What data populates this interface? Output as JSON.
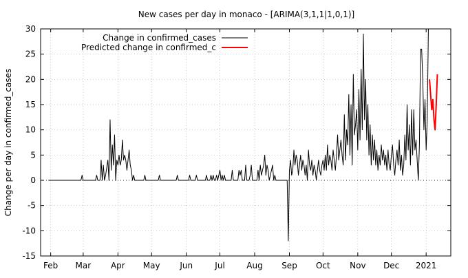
{
  "chart_data": {
    "type": "line",
    "title": "New cases per day in monaco -  [ARIMA(3,1,1|1,0,1)]",
    "xlabel": "",
    "ylabel": "Change per day in confirmed_cases",
    "ylim": [
      -15,
      30
    ],
    "xlim": [
      "2020-01-23",
      "2021-01-23"
    ],
    "y_ticks": [
      -15,
      -10,
      -5,
      0,
      5,
      10,
      15,
      20,
      25,
      30
    ],
    "y_tick_labels": [
      "-15",
      "-10",
      "-5",
      "0",
      "5",
      "10",
      "15",
      "20",
      "25",
      "30"
    ],
    "x_ticks": [
      {
        "label": "Feb",
        "date": "2020-02-01"
      },
      {
        "label": "Mar",
        "date": "2020-03-01"
      },
      {
        "label": "Apr",
        "date": "2020-04-01"
      },
      {
        "label": "May",
        "date": "2020-05-01"
      },
      {
        "label": "Jun",
        "date": "2020-06-01"
      },
      {
        "label": "Jul",
        "date": "2020-07-01"
      },
      {
        "label": "Aug",
        "date": "2020-08-01"
      },
      {
        "label": "Sep",
        "date": "2020-09-01"
      },
      {
        "label": "Oct",
        "date": "2020-10-01"
      },
      {
        "label": "Nov",
        "date": "2020-11-01"
      },
      {
        "label": "Dec",
        "date": "2020-12-01"
      },
      {
        "label": "2021",
        "date": "2021-01-01"
      }
    ],
    "grid": true,
    "zero_line": "dotted",
    "legend_position": "top-left",
    "series": [
      {
        "name": "Change in confirmed_cases",
        "color": "#000000",
        "points": [
          [
            "2020-01-30",
            0
          ],
          [
            "2020-02-28",
            0
          ],
          [
            "2020-02-29",
            1
          ],
          [
            "2020-03-01",
            0
          ],
          [
            "2020-03-12",
            0
          ],
          [
            "2020-03-13",
            1
          ],
          [
            "2020-03-14",
            0
          ],
          [
            "2020-03-16",
            0
          ],
          [
            "2020-03-17",
            4
          ],
          [
            "2020-03-18",
            0
          ],
          [
            "2020-03-19",
            3
          ],
          [
            "2020-03-20",
            0
          ],
          [
            "2020-03-21",
            1
          ],
          [
            "2020-03-23",
            4
          ],
          [
            "2020-03-24",
            0
          ],
          [
            "2020-03-25",
            12
          ],
          [
            "2020-03-26",
            2
          ],
          [
            "2020-03-27",
            7
          ],
          [
            "2020-03-28",
            3
          ],
          [
            "2020-03-29",
            9
          ],
          [
            "2020-03-30",
            0
          ],
          [
            "2020-03-31",
            4
          ],
          [
            "2020-04-01",
            3
          ],
          [
            "2020-04-02",
            5
          ],
          [
            "2020-04-03",
            3
          ],
          [
            "2020-04-04",
            4
          ],
          [
            "2020-04-05",
            8
          ],
          [
            "2020-04-06",
            4
          ],
          [
            "2020-04-07",
            5
          ],
          [
            "2020-04-08",
            4
          ],
          [
            "2020-04-09",
            2
          ],
          [
            "2020-04-10",
            4
          ],
          [
            "2020-04-11",
            6
          ],
          [
            "2020-04-12",
            3
          ],
          [
            "2020-04-13",
            2
          ],
          [
            "2020-04-14",
            0
          ],
          [
            "2020-04-15",
            1
          ],
          [
            "2020-04-16",
            0
          ],
          [
            "2020-04-24",
            0
          ],
          [
            "2020-04-25",
            1
          ],
          [
            "2020-04-26",
            0
          ],
          [
            "2020-05-07",
            0
          ],
          [
            "2020-05-08",
            1
          ],
          [
            "2020-05-09",
            0
          ],
          [
            "2020-05-23",
            0
          ],
          [
            "2020-05-24",
            1
          ],
          [
            "2020-05-25",
            0
          ],
          [
            "2020-06-03",
            0
          ],
          [
            "2020-06-04",
            1
          ],
          [
            "2020-06-05",
            0
          ],
          [
            "2020-06-09",
            0
          ],
          [
            "2020-06-10",
            1
          ],
          [
            "2020-06-11",
            0
          ],
          [
            "2020-06-18",
            0
          ],
          [
            "2020-06-19",
            1
          ],
          [
            "2020-06-20",
            0
          ],
          [
            "2020-06-22",
            0
          ],
          [
            "2020-06-23",
            1
          ],
          [
            "2020-06-24",
            0
          ],
          [
            "2020-06-25",
            1
          ],
          [
            "2020-06-26",
            0
          ],
          [
            "2020-06-27",
            0
          ],
          [
            "2020-06-28",
            1
          ],
          [
            "2020-06-29",
            0
          ],
          [
            "2020-06-30",
            1
          ],
          [
            "2020-07-01",
            2
          ],
          [
            "2020-07-02",
            0
          ],
          [
            "2020-07-03",
            1
          ],
          [
            "2020-07-04",
            0
          ],
          [
            "2020-07-05",
            1
          ],
          [
            "2020-07-06",
            0
          ],
          [
            "2020-07-11",
            0
          ],
          [
            "2020-07-12",
            2
          ],
          [
            "2020-07-13",
            0
          ],
          [
            "2020-07-17",
            0
          ],
          [
            "2020-07-18",
            2
          ],
          [
            "2020-07-19",
            1
          ],
          [
            "2020-07-20",
            2
          ],
          [
            "2020-07-21",
            0
          ],
          [
            "2020-07-23",
            0
          ],
          [
            "2020-07-24",
            3
          ],
          [
            "2020-07-25",
            0
          ],
          [
            "2020-07-27",
            0
          ],
          [
            "2020-07-28",
            1
          ],
          [
            "2020-07-29",
            3
          ],
          [
            "2020-07-30",
            0
          ],
          [
            "2020-08-03",
            0
          ],
          [
            "2020-08-04",
            2
          ],
          [
            "2020-08-05",
            0
          ],
          [
            "2020-08-06",
            3
          ],
          [
            "2020-08-07",
            1
          ],
          [
            "2020-08-08",
            2
          ],
          [
            "2020-08-09",
            3
          ],
          [
            "2020-08-10",
            5
          ],
          [
            "2020-08-11",
            1
          ],
          [
            "2020-08-12",
            3
          ],
          [
            "2020-08-13",
            2
          ],
          [
            "2020-08-14",
            0
          ],
          [
            "2020-08-15",
            1
          ],
          [
            "2020-08-16",
            2
          ],
          [
            "2020-08-17",
            3
          ],
          [
            "2020-08-18",
            0
          ],
          [
            "2020-08-19",
            1
          ],
          [
            "2020-08-20",
            0
          ],
          [
            "2020-08-29",
            0
          ],
          [
            "2020-08-30",
            0
          ],
          [
            "2020-08-31",
            -12
          ],
          [
            "2020-09-01",
            2
          ],
          [
            "2020-09-02",
            4
          ],
          [
            "2020-09-03",
            1
          ],
          [
            "2020-09-04",
            2
          ],
          [
            "2020-09-05",
            6
          ],
          [
            "2020-09-06",
            3
          ],
          [
            "2020-09-07",
            5
          ],
          [
            "2020-09-08",
            4
          ],
          [
            "2020-09-09",
            1
          ],
          [
            "2020-09-10",
            3
          ],
          [
            "2020-09-11",
            5
          ],
          [
            "2020-09-12",
            2
          ],
          [
            "2020-09-13",
            4
          ],
          [
            "2020-09-14",
            3
          ],
          [
            "2020-09-15",
            1
          ],
          [
            "2020-09-16",
            3
          ],
          [
            "2020-09-17",
            0
          ],
          [
            "2020-09-18",
            6
          ],
          [
            "2020-09-19",
            3
          ],
          [
            "2020-09-20",
            2
          ],
          [
            "2020-09-21",
            4
          ],
          [
            "2020-09-22",
            1
          ],
          [
            "2020-09-23",
            3
          ],
          [
            "2020-09-24",
            2
          ],
          [
            "2020-09-25",
            0
          ],
          [
            "2020-09-26",
            2
          ],
          [
            "2020-09-27",
            4
          ],
          [
            "2020-09-28",
            2
          ],
          [
            "2020-09-29",
            1
          ],
          [
            "2020-09-30",
            3
          ],
          [
            "2020-10-01",
            4
          ],
          [
            "2020-10-02",
            2
          ],
          [
            "2020-10-03",
            5
          ],
          [
            "2020-10-04",
            2
          ],
          [
            "2020-10-05",
            7
          ],
          [
            "2020-10-06",
            3
          ],
          [
            "2020-10-07",
            5
          ],
          [
            "2020-10-08",
            4
          ],
          [
            "2020-10-09",
            2
          ],
          [
            "2020-10-10",
            6
          ],
          [
            "2020-10-11",
            4
          ],
          [
            "2020-10-12",
            2
          ],
          [
            "2020-10-13",
            5
          ],
          [
            "2020-10-14",
            9
          ],
          [
            "2020-10-15",
            4
          ],
          [
            "2020-10-16",
            6
          ],
          [
            "2020-10-17",
            8
          ],
          [
            "2020-10-18",
            5
          ],
          [
            "2020-10-19",
            3
          ],
          [
            "2020-10-20",
            13
          ],
          [
            "2020-10-21",
            4
          ],
          [
            "2020-10-22",
            10
          ],
          [
            "2020-10-23",
            7
          ],
          [
            "2020-10-24",
            17
          ],
          [
            "2020-10-25",
            5
          ],
          [
            "2020-10-26",
            15
          ],
          [
            "2020-10-27",
            3
          ],
          [
            "2020-10-28",
            21
          ],
          [
            "2020-10-29",
            9
          ],
          [
            "2020-10-30",
            11
          ],
          [
            "2020-10-31",
            14
          ],
          [
            "2020-11-01",
            6
          ],
          [
            "2020-11-02",
            18
          ],
          [
            "2020-11-03",
            8
          ],
          [
            "2020-11-04",
            22
          ],
          [
            "2020-11-05",
            10
          ],
          [
            "2020-11-06",
            29
          ],
          [
            "2020-11-07",
            12
          ],
          [
            "2020-11-08",
            20
          ],
          [
            "2020-11-09",
            8
          ],
          [
            "2020-11-10",
            15
          ],
          [
            "2020-11-11",
            5
          ],
          [
            "2020-11-12",
            11
          ],
          [
            "2020-11-13",
            3
          ],
          [
            "2020-11-14",
            9
          ],
          [
            "2020-11-15",
            4
          ],
          [
            "2020-11-16",
            8
          ],
          [
            "2020-11-17",
            3
          ],
          [
            "2020-11-18",
            6
          ],
          [
            "2020-11-19",
            2
          ],
          [
            "2020-11-20",
            5
          ],
          [
            "2020-11-21",
            3
          ],
          [
            "2020-11-22",
            7
          ],
          [
            "2020-11-23",
            4
          ],
          [
            "2020-11-24",
            6
          ],
          [
            "2020-11-25",
            3
          ],
          [
            "2020-11-26",
            5
          ],
          [
            "2020-11-27",
            2
          ],
          [
            "2020-11-28",
            6
          ],
          [
            "2020-11-29",
            3
          ],
          [
            "2020-11-30",
            2
          ],
          [
            "2020-12-01",
            5
          ],
          [
            "2020-12-02",
            7
          ],
          [
            "2020-12-03",
            3
          ],
          [
            "2020-12-04",
            1
          ],
          [
            "2020-12-05",
            4
          ],
          [
            "2020-12-06",
            6
          ],
          [
            "2020-12-07",
            3
          ],
          [
            "2020-12-08",
            8
          ],
          [
            "2020-12-09",
            2
          ],
          [
            "2020-12-10",
            5
          ],
          [
            "2020-12-11",
            1
          ],
          [
            "2020-12-12",
            3
          ],
          [
            "2020-12-13",
            9
          ],
          [
            "2020-12-14",
            4
          ],
          [
            "2020-12-15",
            15
          ],
          [
            "2020-12-16",
            6
          ],
          [
            "2020-12-17",
            11
          ],
          [
            "2020-12-18",
            3
          ],
          [
            "2020-12-19",
            14
          ],
          [
            "2020-12-20",
            5
          ],
          [
            "2020-12-21",
            14
          ],
          [
            "2020-12-22",
            6
          ],
          [
            "2020-12-23",
            8
          ],
          [
            "2020-12-24",
            4
          ],
          [
            "2020-12-25",
            0
          ],
          [
            "2020-12-26",
            7
          ],
          [
            "2020-12-27",
            26
          ],
          [
            "2020-12-28",
            26
          ],
          [
            "2020-12-29",
            20
          ],
          [
            "2020-12-30",
            10
          ],
          [
            "2020-12-31",
            16
          ],
          [
            "2021-01-01",
            6
          ],
          [
            "2021-01-02",
            12
          ],
          [
            "2021-01-03",
            30
          ]
        ]
      },
      {
        "name": "Predicted change in confirmed_c",
        "color": "#ff0000",
        "points": [
          [
            "2021-01-04",
            20
          ],
          [
            "2021-01-05",
            17
          ],
          [
            "2021-01-06",
            14
          ],
          [
            "2021-01-07",
            16
          ],
          [
            "2021-01-08",
            12
          ],
          [
            "2021-01-09",
            10
          ],
          [
            "2021-01-10",
            15
          ],
          [
            "2021-01-11",
            21
          ]
        ]
      }
    ]
  }
}
